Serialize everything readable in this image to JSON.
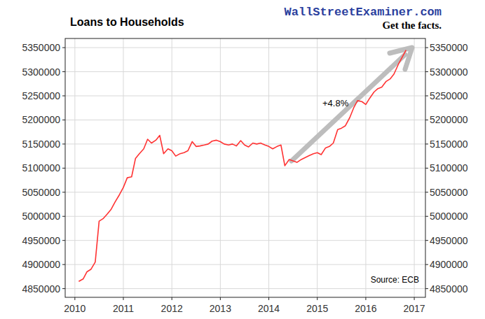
{
  "chart_data": {
    "type": "line",
    "title": "Loans to Households",
    "watermark": "WallStreetExaminer.com",
    "tagline": "Get the facts.",
    "annotations": [
      "+4.8%"
    ],
    "source": "Source: ECB",
    "x": [
      2010.08,
      2010.17,
      2010.25,
      2010.33,
      2010.42,
      2010.5,
      2010.58,
      2010.67,
      2010.75,
      2010.83,
      2010.92,
      2011.0,
      2011.08,
      2011.17,
      2011.25,
      2011.33,
      2011.42,
      2011.5,
      2011.58,
      2011.67,
      2011.75,
      2011.83,
      2011.92,
      2012.0,
      2012.08,
      2012.17,
      2012.25,
      2012.33,
      2012.42,
      2012.5,
      2012.58,
      2012.67,
      2012.75,
      2012.83,
      2012.92,
      2013.0,
      2013.08,
      2013.17,
      2013.25,
      2013.33,
      2013.42,
      2013.5,
      2013.58,
      2013.67,
      2013.75,
      2013.83,
      2013.92,
      2014.0,
      2014.08,
      2014.17,
      2014.25,
      2014.33,
      2014.42,
      2014.5,
      2014.58,
      2014.67,
      2014.75,
      2014.83,
      2014.92,
      2015.0,
      2015.08,
      2015.17,
      2015.25,
      2015.33,
      2015.42,
      2015.5,
      2015.58,
      2015.67,
      2015.75,
      2015.83,
      2015.92,
      2016.0,
      2016.08,
      2016.17,
      2016.25,
      2016.33,
      2016.42,
      2016.5,
      2016.58,
      2016.67,
      2016.75,
      2016.83
    ],
    "values": [
      4865000,
      4870000,
      4885000,
      4890000,
      4905000,
      4990000,
      4995000,
      5005000,
      5015000,
      5030000,
      5045000,
      5060000,
      5080000,
      5082000,
      5120000,
      5130000,
      5140000,
      5160000,
      5152000,
      5158000,
      5168000,
      5130000,
      5140000,
      5136000,
      5125000,
      5130000,
      5132000,
      5136000,
      5155000,
      5145000,
      5146000,
      5148000,
      5150000,
      5156000,
      5158000,
      5155000,
      5150000,
      5148000,
      5150000,
      5146000,
      5157000,
      5148000,
      5144000,
      5152000,
      5150000,
      5152000,
      5148000,
      5145000,
      5140000,
      5145000,
      5148000,
      5105000,
      5118000,
      5115000,
      5112000,
      5118000,
      5122000,
      5126000,
      5130000,
      5132000,
      5128000,
      5142000,
      5145000,
      5152000,
      5180000,
      5183000,
      5188000,
      5205000,
      5225000,
      5240000,
      5238000,
      5232000,
      5245000,
      5258000,
      5265000,
      5268000,
      5280000,
      5285000,
      5295000,
      5315000,
      5330000,
      5345000
    ],
    "color": "#ff3333",
    "xlim": [
      2009.8,
      2017.23
    ],
    "xticks": [
      2010,
      2011,
      2012,
      2013,
      2014,
      2015,
      2016,
      2017
    ],
    "ylim": [
      4832000,
      5369000
    ],
    "yticks": [
      4850000,
      4900000,
      4950000,
      5000000,
      5050000,
      5100000,
      5150000,
      5200000,
      5250000,
      5300000,
      5350000
    ],
    "y2lim": [
      4832000,
      5369000
    ],
    "y2ticks": [
      4850000,
      4900000,
      4950000,
      5000000,
      5050000,
      5100000,
      5150000,
      5200000,
      5250000,
      5300000,
      5350000
    ],
    "grid": true
  }
}
